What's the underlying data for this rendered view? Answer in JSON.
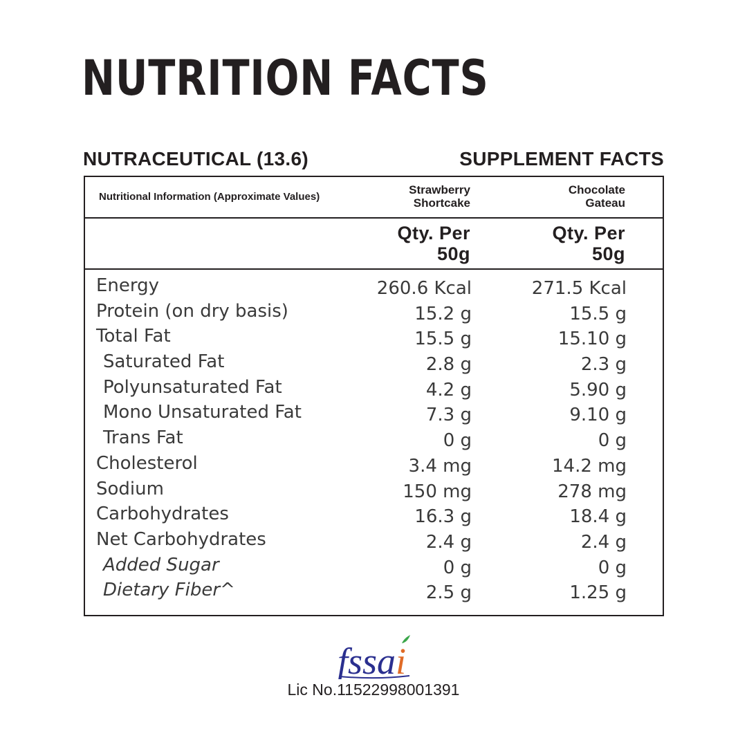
{
  "title": "NUTRITION FACTS",
  "subtitle_left": "NUTRACEUTICAL (13.6)",
  "subtitle_right": "SUPPLEMENT FACTS",
  "table": {
    "header_label": "Nutritional Information (Approximate Values)",
    "columns": [
      {
        "line1": "Strawberry",
        "line2": "Shortcake",
        "qty_line1": "Qty. Per",
        "qty_line2": "50g"
      },
      {
        "line1": "Chocolate",
        "line2": "Gateau",
        "qty_line1": "Qty. Per",
        "qty_line2": "50g"
      }
    ],
    "rows": [
      {
        "name": "Energy",
        "v1": "260.6 Kcal",
        "v2": "271.5 Kcal"
      },
      {
        "name": "Protein (on dry basis)",
        "v1": "15.2 g",
        "v2": "15.5 g"
      },
      {
        "name": "Total Fat",
        "v1": "15.5 g",
        "v2": "15.10 g"
      },
      {
        "name": "Saturated Fat",
        "v1": "2.8 g",
        "v2": "2.3 g"
      },
      {
        "name": "Polyunsaturated Fat",
        "v1": "4.2 g",
        "v2": "5.90 g"
      },
      {
        "name": "Mono Unsaturated Fat",
        "v1": "7.3 g",
        "v2": "9.10 g"
      },
      {
        "name": "Trans Fat",
        "v1": "0 g",
        "v2": "0 g"
      },
      {
        "name": "Cholesterol",
        "v1": "3.4 mg",
        "v2": "14.2 mg"
      },
      {
        "name": "Sodium",
        "v1": "150 mg",
        "v2": "278 mg"
      },
      {
        "name": "Carbohydrates",
        "v1": "16.3 g",
        "v2": "18.4 g"
      },
      {
        "name": "Net Carbohydrates",
        "v1": "2.4 g",
        "v2": "2.4 g"
      },
      {
        "name": "Added Sugar",
        "v1": "0 g",
        "v2": "0 g"
      },
      {
        "name": "Dietary Fiber^",
        "v1": "2.5 g",
        "v2": "1.25 g"
      }
    ]
  },
  "footer": {
    "logo_icon": "fssai-logo-icon",
    "logo_text": "fssai",
    "license": "Lic No.11522998001391"
  },
  "colors": {
    "text": "#231f20",
    "logo_blue": "#2a2f8f",
    "logo_orange": "#e06b26",
    "logo_green": "#3aa64a"
  }
}
